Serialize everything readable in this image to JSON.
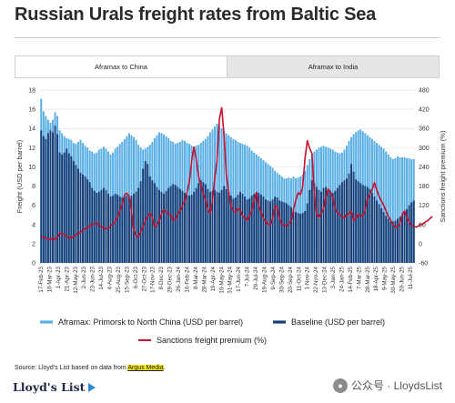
{
  "title": "Russian Urals freight rates from Baltic Sea",
  "tabs": [
    {
      "label": "Aframax to China",
      "active": true
    },
    {
      "label": "Aframax to India",
      "active": false
    }
  ],
  "source": {
    "prefix": "Source: Lloyd's List based on data from ",
    "highlight": "Argus Media",
    "suffix": "."
  },
  "logo": "Lloyd's List",
  "watermark": {
    "icon": "wechat-icon",
    "text": "公众号 · LloydsList"
  },
  "colors": {
    "light_blue": "#5aaee6",
    "dark_blue": "#173f78",
    "red": "#c8102e",
    "grid": "#e4e4e4"
  },
  "chart_data": {
    "type": "bar",
    "ylabel": "Freight (USD per barrel)",
    "y2label": "Sanctions freight premium (%)",
    "ylim": [
      0,
      18
    ],
    "y_ticks": [
      0,
      2,
      4,
      6,
      8,
      10,
      12,
      14,
      16,
      18
    ],
    "y2lim": [
      -60,
      480
    ],
    "y2_ticks": [
      -60,
      0,
      60,
      120,
      180,
      240,
      300,
      360,
      420,
      480
    ],
    "x_tick_labels": [
      "17-Feb-23",
      "10-Mar-23",
      "1-Apr-23",
      "21-Apr-23",
      "12-May-23",
      "2-Jun-23",
      "23-Jun-23",
      "14-Jul-23",
      "4-Aug-23",
      "25-Aug-23",
      "15-Sep-23",
      "6-Oct-23",
      "27-Oct-23",
      "17-Nov-23",
      "8-Dec-23",
      "29-Dec-23",
      "26-Jan-24",
      "16-Feb-24",
      "8-Mar-24",
      "28-Mar-24",
      "19-Apr-24",
      "10-May-24",
      "31-May-24",
      "17-Jun-24",
      "7-Jul-24",
      "29-Jul-24",
      "19-Aug-24",
      "9-Sep-24",
      "30-Sep-24",
      "20-Sep-24",
      "11-Oct-24",
      "1-Nov-24",
      "22-Nov-24",
      "13-Dec-24",
      "3-Jan-25",
      "24-Jan-25",
      "14-Feb-25",
      "7-Mar-25",
      "28-Mar-25",
      "18-Apr-25",
      "9-May-25",
      "30-May-25",
      "20-Jun-25",
      "11-Jul-25"
    ],
    "series": [
      {
        "name": "Aframax: Primorsk to North China (USD per barrel)",
        "type": "bar",
        "axis": "left",
        "values": [
          17.1,
          15.8,
          15.3,
          14.9,
          14.6,
          14.9,
          15.7,
          15.3,
          13.8,
          13.5,
          13.2,
          13.0,
          12.9,
          12.8,
          12.5,
          12.4,
          12.6,
          12.8,
          12.5,
          12.2,
          12.0,
          11.7,
          11.6,
          11.4,
          11.5,
          11.8,
          11.9,
          12.1,
          11.9,
          11.6,
          11.3,
          11.5,
          11.9,
          12.1,
          12.4,
          12.6,
          12.9,
          13.2,
          13.5,
          13.3,
          13.1,
          12.8,
          12.3,
          12.0,
          11.8,
          11.9,
          12.1,
          12.3,
          12.6,
          13.0,
          13.3,
          13.6,
          13.5,
          13.4,
          13.2,
          13.0,
          12.7,
          12.6,
          12.4,
          12.5,
          12.6,
          12.8,
          12.7,
          12.5,
          12.4,
          12.2,
          12.1,
          12.2,
          12.3,
          12.5,
          12.7,
          12.9,
          13.2,
          13.6,
          13.9,
          14.2,
          14.5,
          14.3,
          14.0,
          13.7,
          13.5,
          13.3,
          13.1,
          12.9,
          12.8,
          12.6,
          12.5,
          12.4,
          12.3,
          12.2,
          12.0,
          11.7,
          11.5,
          11.3,
          11.1,
          10.9,
          10.7,
          10.5,
          10.3,
          10.1,
          9.9,
          9.6,
          9.4,
          9.2,
          9.0,
          8.8,
          8.8,
          8.9,
          8.8,
          9.0,
          8.8,
          8.9,
          9.0,
          9.2,
          9.6,
          10.2,
          10.8,
          11.3,
          11.6,
          11.8,
          12.0,
          12.1,
          12.2,
          12.1,
          12.0,
          11.9,
          11.8,
          11.6,
          11.5,
          11.4,
          11.5,
          11.8,
          12.2,
          12.7,
          13.1,
          13.4,
          13.6,
          13.8,
          13.9,
          13.7,
          13.5,
          13.3,
          13.1,
          12.9,
          12.7,
          12.5,
          12.3,
          12.1,
          11.9,
          11.6,
          11.3,
          11.0,
          10.8,
          10.9,
          11.1,
          11.0,
          11.0,
          11.0,
          10.9,
          10.9,
          10.8,
          10.8
        ]
      },
      {
        "name": "Baseline (USD per barrel)",
        "type": "bar",
        "axis": "left",
        "values": [
          13.8,
          13.2,
          12.9,
          13.5,
          13.8,
          13.6,
          14.3,
          13.4,
          11.5,
          11.3,
          11.5,
          11.9,
          11.4,
          11.1,
          10.6,
          10.2,
          9.8,
          9.4,
          9.2,
          9.0,
          8.7,
          8.4,
          7.8,
          7.5,
          7.3,
          7.4,
          7.6,
          7.8,
          7.6,
          7.2,
          6.9,
          7.0,
          7.2,
          7.1,
          6.9,
          6.8,
          6.9,
          7.0,
          6.8,
          7.0,
          7.2,
          7.4,
          7.8,
          8.5,
          9.8,
          10.6,
          10.3,
          9.0,
          8.6,
          8.3,
          7.9,
          7.6,
          7.4,
          7.2,
          7.5,
          7.8,
          8.0,
          8.2,
          8.1,
          7.9,
          7.7,
          7.5,
          7.3,
          7.1,
          7.0,
          7.1,
          7.4,
          7.8,
          8.3,
          8.6,
          8.4,
          8.2,
          7.7,
          7.4,
          7.5,
          7.6,
          7.4,
          7.3,
          7.6,
          8.0,
          7.7,
          7.4,
          7.0,
          6.7,
          6.8,
          7.1,
          7.4,
          7.2,
          6.9,
          6.6,
          6.7,
          7.0,
          7.2,
          7.4,
          7.3,
          7.1,
          6.9,
          6.6,
          6.5,
          6.4,
          6.6,
          6.9,
          6.8,
          6.5,
          6.4,
          6.3,
          6.2,
          6.0,
          5.8,
          5.6,
          5.3,
          5.2,
          5.1,
          5.2,
          5.4,
          6.2,
          7.6,
          8.6,
          8.3,
          7.9,
          7.6,
          7.4,
          7.8,
          7.9,
          7.7,
          7.5,
          7.3,
          7.5,
          7.8,
          8.1,
          8.4,
          8.6,
          8.8,
          9.3,
          10.3,
          9.5,
          8.7,
          8.5,
          8.3,
          8.1,
          8.0,
          7.9,
          7.7,
          7.3,
          6.9,
          6.5,
          6.1,
          5.7,
          5.3,
          4.9,
          4.6,
          4.3,
          4.3,
          4.4,
          4.6,
          4.8,
          5.0,
          5.3,
          5.6,
          6.0,
          6.3,
          6.5,
          6.5,
          6.5
        ]
      },
      {
        "name": "Sanctions freight premium (%)",
        "type": "line",
        "axis": "right",
        "values": [
          23,
          20,
          18,
          14,
          12,
          18,
          12,
          20,
          33,
          32,
          28,
          24,
          17,
          19,
          22,
          28,
          32,
          35,
          43,
          46,
          50,
          55,
          60,
          62,
          65,
          58,
          52,
          50,
          45,
          48,
          55,
          62,
          70,
          82,
          103,
          124,
          152,
          158,
          148,
          103,
          40,
          24,
          22,
          37,
          53,
          73,
          86,
          95,
          84,
          52,
          58,
          72,
          94,
          106,
          99,
          93,
          90,
          72,
          78,
          91,
          102,
          119,
          133,
          160,
          192,
          256,
          302,
          262,
          211,
          182,
          157,
          136,
          108,
          95,
          133,
          206,
          262,
          390,
          425,
          338,
          215,
          162,
          117,
          103,
          99,
          111,
          104,
          86,
          82,
          72,
          86,
          103,
          135,
          159,
          120,
          98,
          80,
          69,
          61,
          59,
          80,
          117,
          113,
          79,
          60,
          58,
          54,
          62,
          70,
          106,
          136,
          160,
          153,
          178,
          267,
          322,
          298,
          282,
          158,
          93,
          81,
          95,
          109,
          145,
          171,
          159,
          144,
          111,
          96,
          92,
          84,
          80,
          92,
          94,
          101,
          72,
          79,
          93,
          86,
          88,
          104,
          141,
          154,
          169,
          192,
          168,
          148,
          134,
          119,
          103,
          85,
          74,
          59,
          51,
          53,
          63,
          91,
          103,
          82,
          68,
          57,
          54,
          52,
          55,
          60,
          62,
          68,
          72,
          79,
          85
        ]
      }
    ],
    "legend": "bottom"
  }
}
